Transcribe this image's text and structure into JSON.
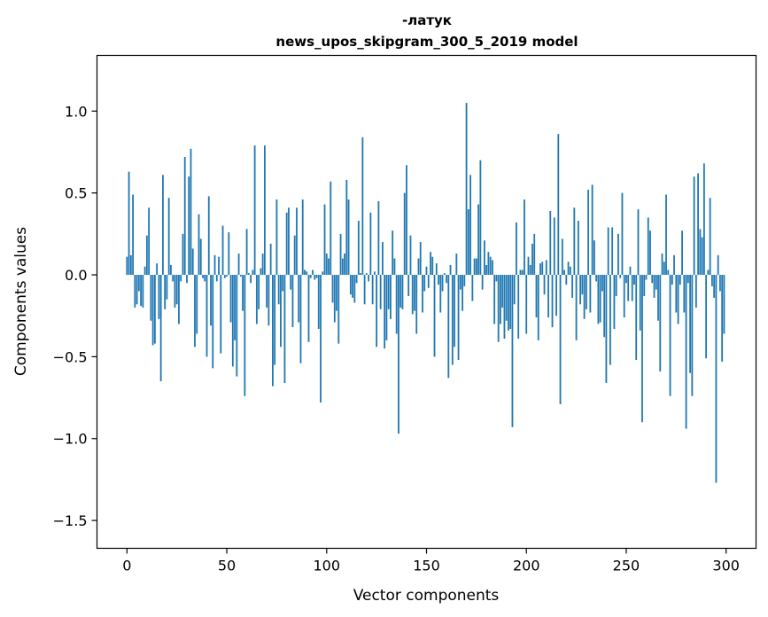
{
  "chart_data": {
    "type": "bar",
    "title": "-латук",
    "subtitle": "news_upos_skipgram_300_5_2019 model",
    "xlabel": "Vector components",
    "ylabel": "Components values",
    "xlim": [
      -15,
      315
    ],
    "ylim": [
      -1.67,
      1.34
    ],
    "xticks": [
      0,
      50,
      100,
      150,
      200,
      250,
      300
    ],
    "yticks": [
      -1.5,
      -1.0,
      -0.5,
      0.0,
      0.5,
      1.0
    ],
    "ytick_labels": [
      "−1.5",
      "−1.0",
      "−0.5",
      "0.0",
      "0.5",
      "1.0"
    ],
    "grid": false,
    "bar_color": "#1f77b4",
    "values": [
      0.11,
      0.63,
      0.12,
      0.49,
      -0.2,
      -0.18,
      -0.1,
      -0.19,
      -0.2,
      0.05,
      0.24,
      0.41,
      -0.28,
      -0.43,
      -0.42,
      0.07,
      -0.27,
      -0.65,
      0.61,
      -0.21,
      -0.15,
      0.47,
      0.06,
      -0.04,
      -0.2,
      -0.18,
      -0.3,
      -0.04,
      0.25,
      0.72,
      -0.05,
      0.6,
      0.77,
      0.16,
      -0.44,
      -0.36,
      0.37,
      0.22,
      -0.02,
      -0.04,
      -0.5,
      0.48,
      -0.31,
      -0.57,
      0.12,
      -0.04,
      0.11,
      -0.48,
      0.3,
      -0.02,
      -0.01,
      0.26,
      -0.29,
      -0.56,
      -0.4,
      -0.62,
      0.13,
      -0.01,
      -0.22,
      -0.74,
      0.28,
      0.01,
      -0.05,
      0.03,
      0.79,
      -0.3,
      -0.21,
      0.04,
      0.13,
      0.79,
      -0.2,
      -0.31,
      0.19,
      -0.68,
      -0.55,
      0.46,
      -0.18,
      -0.44,
      -0.1,
      -0.66,
      0.38,
      0.41,
      -0.09,
      -0.32,
      0.24,
      0.41,
      -0.29,
      -0.54,
      0.46,
      0.03,
      0.02,
      -0.41,
      -0.02,
      0.03,
      -0.03,
      -0.02,
      -0.33,
      -0.78,
      0.02,
      0.43,
      0.13,
      0.1,
      0.57,
      -0.17,
      -0.29,
      -0.22,
      -0.42,
      0.25,
      0.1,
      0.13,
      0.58,
      0.46,
      -0.12,
      -0.14,
      -0.17,
      -0.05,
      0.33,
      0.01,
      0.84,
      -0.18,
      0.01,
      -0.04,
      0.38,
      -0.18,
      0.02,
      -0.44,
      0.45,
      -0.21,
      0.2,
      -0.45,
      -0.4,
      -0.21,
      -0.27,
      0.27,
      0.1,
      -0.36,
      -0.97,
      -0.2,
      -0.21,
      0.5,
      0.67,
      -0.13,
      0.24,
      -0.24,
      -0.22,
      -0.36,
      0.1,
      0.2,
      -0.23,
      -0.1,
      0.05,
      -0.08,
      0.14,
      0.11,
      -0.5,
      0.07,
      -0.06,
      -0.23,
      -0.1,
      0.01,
      -0.05,
      -0.63,
      0.06,
      -0.55,
      -0.44,
      0.13,
      -0.52,
      -0.09,
      -0.22,
      -0.07,
      1.05,
      0.4,
      0.61,
      -0.16,
      0.1,
      0.1,
      0.43,
      0.7,
      -0.09,
      0.21,
      0.06,
      0.14,
      0.11,
      0.09,
      -0.3,
      -0.04,
      -0.41,
      -0.3,
      -0.2,
      -0.39,
      -0.28,
      -0.34,
      -0.33,
      -0.93,
      -0.18,
      0.32,
      -0.39,
      0.03,
      0.03,
      0.46,
      -0.36,
      0.11,
      0.06,
      0.19,
      0.25,
      -0.26,
      -0.4,
      0.07,
      0.08,
      -0.12,
      0.09,
      -0.26,
      0.39,
      -0.32,
      0.35,
      -0.25,
      0.86,
      -0.79,
      0.22,
      0.03,
      -0.06,
      0.08,
      0.05,
      -0.14,
      0.41,
      -0.4,
      0.33,
      -0.18,
      -0.12,
      -0.27,
      -0.21,
      0.52,
      -0.23,
      0.55,
      0.21,
      -0.04,
      -0.3,
      -0.29,
      -0.1,
      -0.38,
      -0.66,
      0.29,
      -0.55,
      0.29,
      -0.33,
      -0.13,
      0.25,
      -0.02,
      0.5,
      -0.26,
      -0.05,
      -0.16,
      0.05,
      -0.16,
      -0.06,
      -0.52,
      0.4,
      -0.34,
      -0.9,
      -0.13,
      -0.03,
      0.35,
      0.27,
      -0.05,
      -0.14,
      -0.09,
      -0.28,
      -0.59,
      0.13,
      0.08,
      0.49,
      0.03,
      -0.74,
      -0.06,
      0.12,
      -0.23,
      -0.3,
      -0.06,
      0.27,
      -0.23,
      -0.94,
      -0.05,
      -0.6,
      -0.74,
      0.6,
      -0.2,
      0.62,
      0.28,
      0.23,
      0.68,
      -0.51,
      0.03,
      0.47,
      -0.07,
      -0.14,
      -1.27,
      0.12,
      -0.1,
      -0.53,
      -0.36
    ]
  }
}
